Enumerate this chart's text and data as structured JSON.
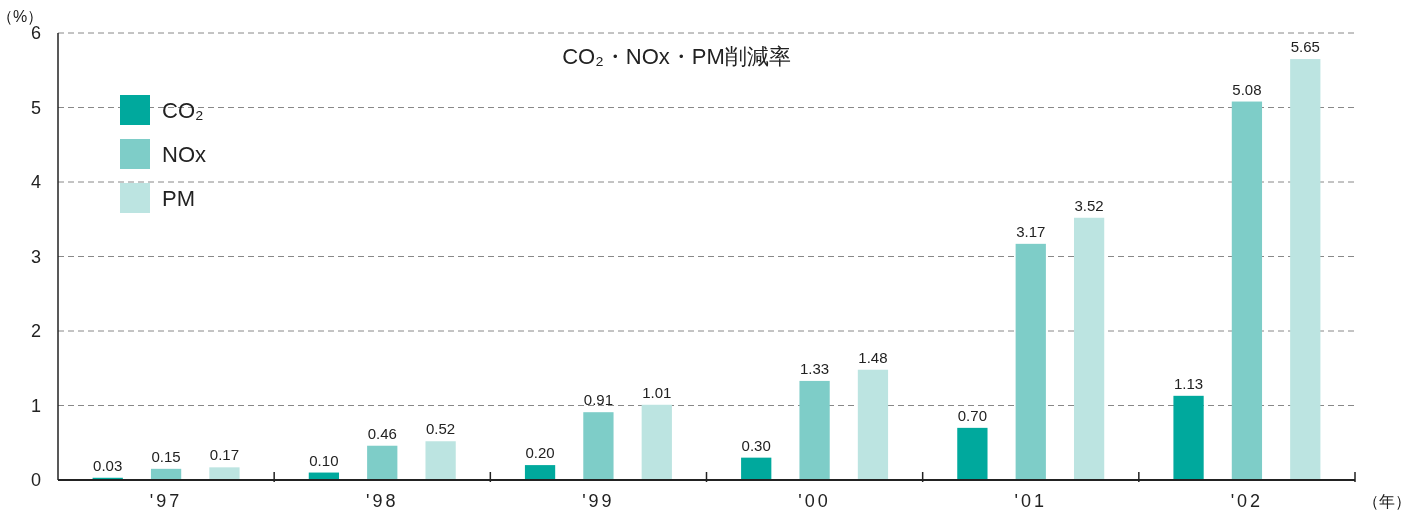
{
  "chart_data": {
    "type": "bar",
    "title": "CO₂・NOx・PM削減率",
    "ylabel": "（%）",
    "xlabel": "（年）",
    "categories": [
      "'97",
      "'98",
      "'99",
      "'00",
      "'01",
      "'02"
    ],
    "series": [
      {
        "name": "CO₂",
        "color": "#00a99d",
        "values": [
          0.03,
          0.1,
          0.2,
          0.3,
          0.7,
          1.13
        ],
        "value_labels": [
          "0.03",
          "0.10",
          "0.20",
          "0.30",
          "0.70",
          "1.13"
        ]
      },
      {
        "name": "NOx",
        "color": "#7ecdc8",
        "values": [
          0.15,
          0.46,
          0.91,
          1.33,
          3.17,
          5.08
        ],
        "value_labels": [
          "0.15",
          "0.46",
          "0.91",
          "1.33",
          "3.17",
          "5.08"
        ]
      },
      {
        "name": "PM",
        "color": "#bce4e1",
        "values": [
          0.17,
          0.52,
          1.01,
          1.48,
          3.52,
          5.65
        ],
        "value_labels": [
          "0.17",
          "0.52",
          "1.01",
          "1.48",
          "3.52",
          "5.65"
        ]
      }
    ],
    "ylim": [
      0,
      6
    ],
    "yticks": [
      0,
      1,
      2,
      3,
      4,
      5,
      6
    ],
    "grid": "y",
    "legend": "top left"
  }
}
